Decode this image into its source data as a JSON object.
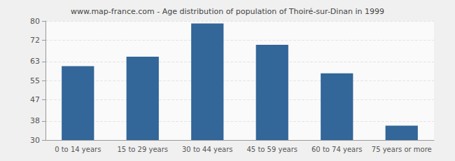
{
  "chart_data": {
    "type": "bar",
    "title": "www.map-france.com - Age distribution of population of Thoiré-sur-Dinan in 1999",
    "categories": [
      "0 to 14 years",
      "15 to 29 years",
      "30 to 44 years",
      "45 to 59 years",
      "60 to 74 years",
      "75 years or more"
    ],
    "values": [
      61,
      65,
      79,
      70,
      58,
      36
    ],
    "color": "#336699",
    "ylim": [
      30,
      80
    ],
    "yticks": [
      30,
      38,
      47,
      55,
      63,
      72,
      80
    ],
    "grid": true
  }
}
